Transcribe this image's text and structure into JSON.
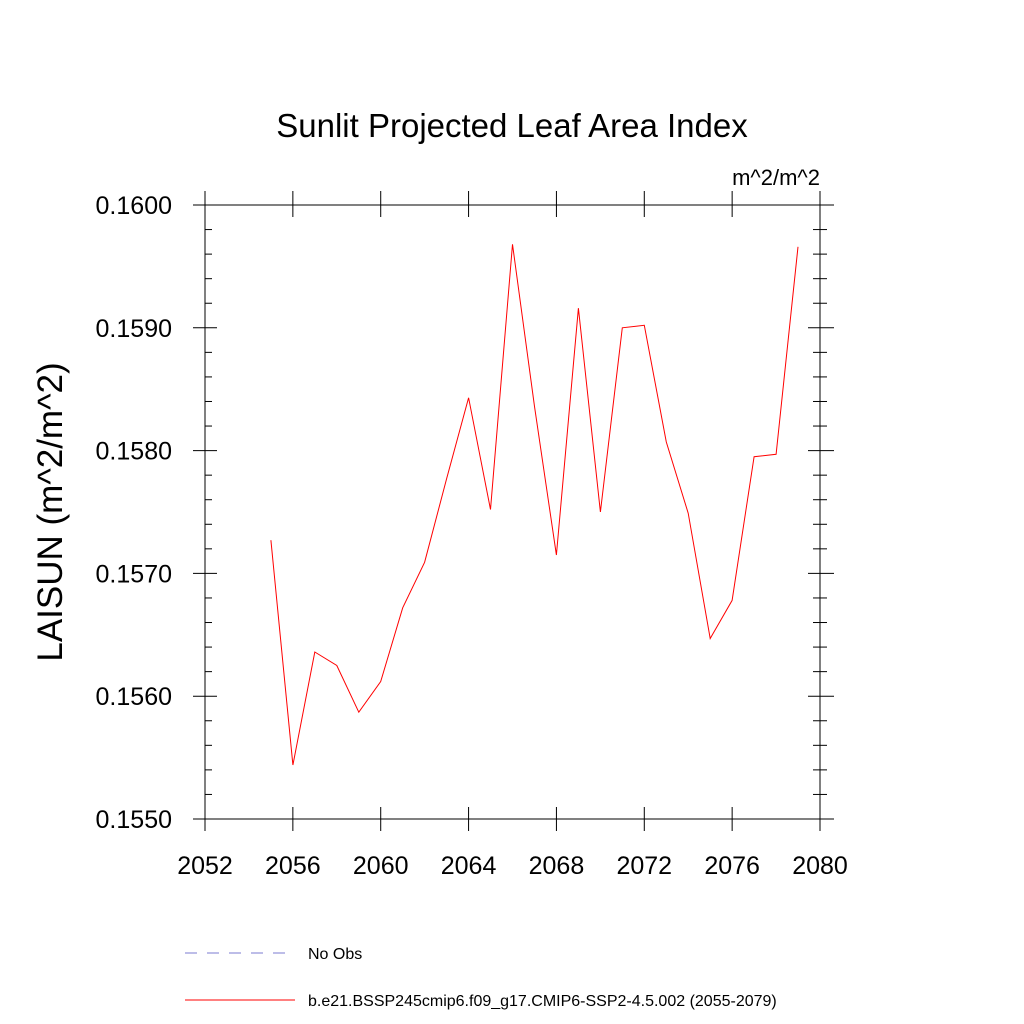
{
  "chart_data": {
    "type": "line",
    "title": "Sunlit Projected Leaf Area Index",
    "units": "m^2/m^2",
    "xlabel": "",
    "ylabel": "LAISUN  (m^2/m^2)",
    "xlim": [
      2052,
      2080
    ],
    "ylim": [
      0.155,
      0.16
    ],
    "xticks": [
      2052,
      2056,
      2060,
      2064,
      2068,
      2072,
      2076,
      2080
    ],
    "xtick_labels": [
      "2052",
      "2056",
      "2060",
      "2064",
      "2068",
      "2072",
      "2076",
      "2080"
    ],
    "yticks": [
      0.155,
      0.156,
      0.157,
      0.158,
      0.159,
      0.16
    ],
    "ytick_labels": [
      "0.1550",
      "0.1560",
      "0.1570",
      "0.1580",
      "0.1590",
      "0.1600"
    ],
    "series": [
      {
        "name": "b.e21.BSSP245cmip6.f09_g17.CMIP6-SSP2-4.5.002 (2055-2079)",
        "color": "#ff0000",
        "x": [
          2055,
          2056,
          2057,
          2058,
          2059,
          2060,
          2061,
          2062,
          2063,
          2064,
          2065,
          2066,
          2067,
          2068,
          2069,
          2070,
          2071,
          2072,
          2073,
          2074,
          2075,
          2076,
          2077,
          2078,
          2079
        ],
        "y": [
          0.15727,
          0.15544,
          0.15636,
          0.15625,
          0.15587,
          0.15612,
          0.15672,
          0.15709,
          0.15777,
          0.15843,
          0.15752,
          0.15968,
          0.15836,
          0.15715,
          0.15916,
          0.1575,
          0.159,
          0.15902,
          0.15807,
          0.15749,
          0.15647,
          0.15678,
          0.15795,
          0.15797,
          0.15966
        ]
      }
    ],
    "legend": [
      {
        "label": "No Obs",
        "style": "dashed",
        "color": "#7b7bd0"
      },
      {
        "label": "b.e21.BSSP245cmip6.f09_g17.CMIP6-SSP2-4.5.002 (2055-2079)",
        "style": "solid",
        "color": "#ff0000"
      }
    ],
    "legend_position": "bottom"
  }
}
